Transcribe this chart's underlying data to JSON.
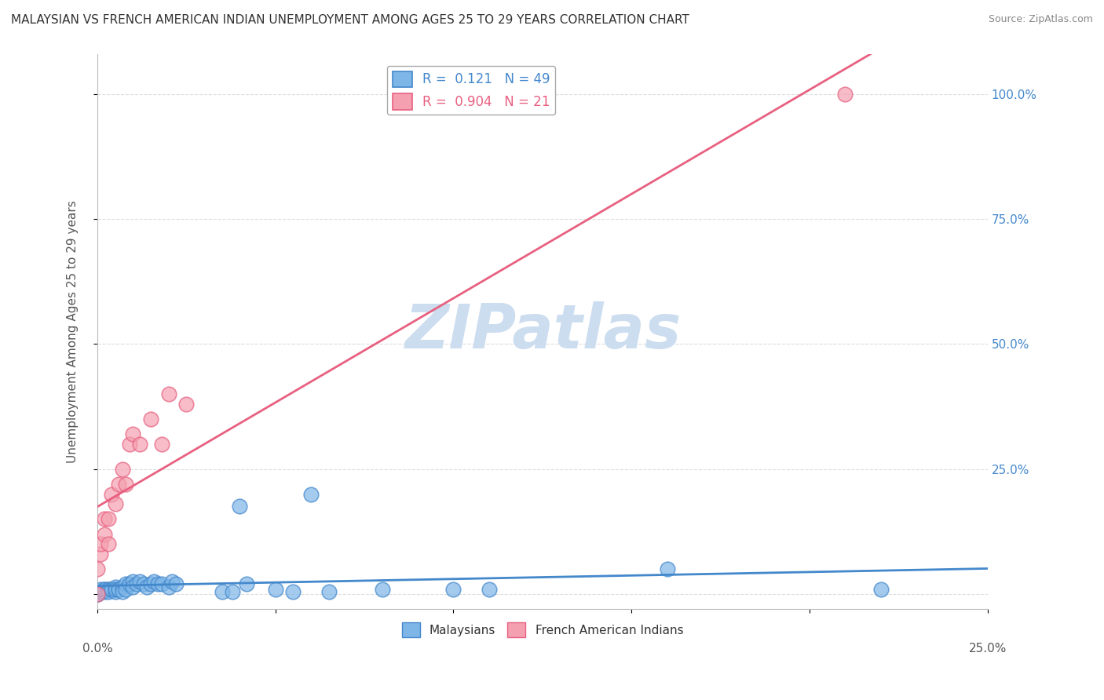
{
  "title": "MALAYSIAN VS FRENCH AMERICAN INDIAN UNEMPLOYMENT AMONG AGES 25 TO 29 YEARS CORRELATION CHART",
  "source": "Source: ZipAtlas.com",
  "ylabel": "Unemployment Among Ages 25 to 29 years",
  "ytick_vals": [
    0,
    0.25,
    0.5,
    0.75,
    1.0
  ],
  "ytick_labels": [
    "",
    "25.0%",
    "50.0%",
    "75.0%",
    "100.0%"
  ],
  "xlim": [
    0.0,
    0.25
  ],
  "ylim": [
    -0.03,
    1.08
  ],
  "malaysian_R": 0.121,
  "malaysian_N": 49,
  "fai_R": 0.904,
  "fai_N": 21,
  "blue_color": "#7EB6E8",
  "pink_color": "#F4A0B0",
  "blue_line_color": "#4488CC",
  "pink_line_color": "#E86080",
  "watermark_color": "#CCDDF0",
  "background_color": "#FFFFFF",
  "malaysian_x": [
    0.0,
    0.0,
    0.001,
    0.001,
    0.001,
    0.002,
    0.002,
    0.002,
    0.003,
    0.003,
    0.003,
    0.004,
    0.004,
    0.005,
    0.005,
    0.005,
    0.006,
    0.006,
    0.007,
    0.007,
    0.008,
    0.008,
    0.009,
    0.01,
    0.01,
    0.011,
    0.012,
    0.013,
    0.014,
    0.015,
    0.016,
    0.017,
    0.018,
    0.02,
    0.021,
    0.022,
    0.035,
    0.038,
    0.04,
    0.042,
    0.05,
    0.055,
    0.06,
    0.065,
    0.08,
    0.1,
    0.11,
    0.16,
    0.22
  ],
  "malaysian_y": [
    0.0,
    0.0,
    0.005,
    0.005,
    0.01,
    0.005,
    0.01,
    0.01,
    0.01,
    0.01,
    0.005,
    0.01,
    0.01,
    0.015,
    0.005,
    0.01,
    0.01,
    0.01,
    0.015,
    0.005,
    0.02,
    0.01,
    0.02,
    0.025,
    0.015,
    0.02,
    0.025,
    0.02,
    0.015,
    0.02,
    0.025,
    0.02,
    0.02,
    0.015,
    0.025,
    0.02,
    0.005,
    0.005,
    0.175,
    0.02,
    0.01,
    0.005,
    0.2,
    0.005,
    0.01,
    0.01,
    0.01,
    0.05,
    0.01
  ],
  "fai_x": [
    0.0,
    0.0,
    0.001,
    0.001,
    0.002,
    0.002,
    0.003,
    0.003,
    0.004,
    0.005,
    0.006,
    0.007,
    0.008,
    0.009,
    0.01,
    0.012,
    0.015,
    0.018,
    0.02,
    0.025,
    0.21
  ],
  "fai_y": [
    0.0,
    0.05,
    0.08,
    0.1,
    0.12,
    0.15,
    0.1,
    0.15,
    0.2,
    0.18,
    0.22,
    0.25,
    0.22,
    0.3,
    0.32,
    0.3,
    0.35,
    0.3,
    0.4,
    0.38,
    1.0
  ]
}
